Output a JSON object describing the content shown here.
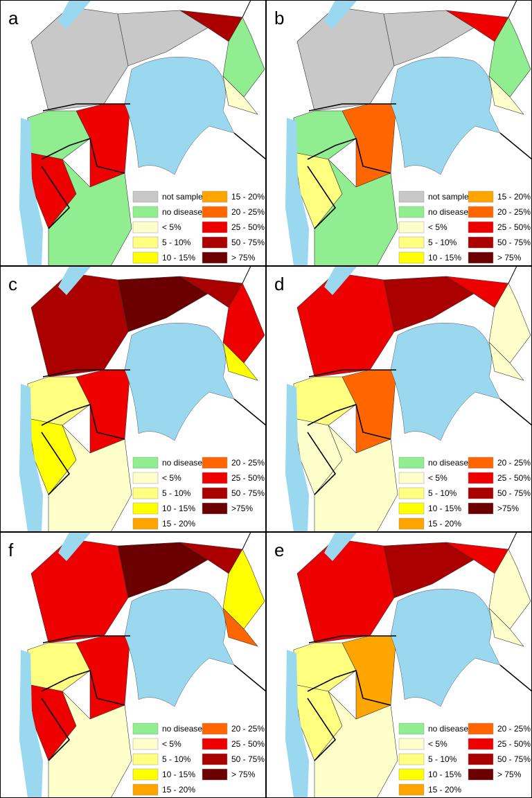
{
  "panels": [
    {
      "letter": "a",
      "legend": [
        {
          "label": "not sampled",
          "color": "#c8c8c8"
        },
        {
          "label": "no disease",
          "color": "#90ee90"
        },
        {
          "label": "< 5%",
          "color": "#ffffcc"
        },
        {
          "label": "5 - 10%",
          "color": "#ffff80"
        },
        {
          "label": "10 - 15%",
          "color": "#ffff00"
        },
        {
          "label": "15 - 20%",
          "color": "#ffa500"
        },
        {
          "label": "20 - 25%",
          "color": "#ff6600"
        },
        {
          "label": "25 - 50%",
          "color": "#ee0000"
        },
        {
          "label": "50 - 75%",
          "color": "#aa0000"
        },
        {
          "label": "> 75%",
          "color": "#6b0000"
        }
      ]
    },
    {
      "letter": "b",
      "legend": [
        {
          "label": "not sampled",
          "color": "#c8c8c8"
        },
        {
          "label": "no disease",
          "color": "#90ee90"
        },
        {
          "label": "< 5%",
          "color": "#ffffcc"
        },
        {
          "label": "5 - 10%",
          "color": "#ffff80"
        },
        {
          "label": "10 - 15%",
          "color": "#ffff00"
        },
        {
          "label": "15 - 20%",
          "color": "#ffa500"
        },
        {
          "label": "20 - 25%",
          "color": "#ff6600"
        },
        {
          "label": "25 - 50%",
          "color": "#ee0000"
        },
        {
          "label": "50 - 75%",
          "color": "#aa0000"
        },
        {
          "label": "> 75%",
          "color": "#6b0000"
        }
      ]
    },
    {
      "letter": "c",
      "legend": [
        {
          "label": "no disease",
          "color": "#90ee90"
        },
        {
          "label": "< 5%",
          "color": "#ffffcc"
        },
        {
          "label": "5 - 10%",
          "color": "#ffff80"
        },
        {
          "label": "10 - 15%",
          "color": "#ffff00"
        },
        {
          "label": "15 - 20%",
          "color": "#ffa500"
        },
        {
          "label": "20 - 25%",
          "color": "#ff6600"
        },
        {
          "label": "25 - 50%",
          "color": "#ee0000"
        },
        {
          "label": "50 - 75%",
          "color": "#aa0000"
        },
        {
          "label": ">75%",
          "color": "#6b0000"
        }
      ]
    },
    {
      "letter": "d",
      "legend": [
        {
          "label": "no disease",
          "color": "#90ee90"
        },
        {
          "label": "< 5%",
          "color": "#ffffcc"
        },
        {
          "label": "5 - 10%",
          "color": "#ffff80"
        },
        {
          "label": "10 - 15%",
          "color": "#ffff00"
        },
        {
          "label": "15 - 20%",
          "color": "#ffa500"
        },
        {
          "label": "20 - 25%",
          "color": "#ff6600"
        },
        {
          "label": "25 - 50%",
          "color": "#ee0000"
        },
        {
          "label": "50 - 75%",
          "color": "#aa0000"
        },
        {
          "label": ">75%",
          "color": "#6b0000"
        }
      ]
    },
    {
      "letter": "f",
      "legend": [
        {
          "label": "no disease",
          "color": "#90ee90"
        },
        {
          "label": "< 5%",
          "color": "#ffffcc"
        },
        {
          "label": "5 - 10%",
          "color": "#ffff80"
        },
        {
          "label": "10 - 15%",
          "color": "#ffff00"
        },
        {
          "label": "15 - 20%",
          "color": "#ffa500"
        },
        {
          "label": "20 - 25%",
          "color": "#ff6600"
        },
        {
          "label": "25 - 50%",
          "color": "#ee0000"
        },
        {
          "label": "50 - 75%",
          "color": "#aa0000"
        },
        {
          "label": "> 75%",
          "color": "#6b0000"
        }
      ]
    },
    {
      "letter": "e",
      "legend": [
        {
          "label": "no disease",
          "color": "#90ee90"
        },
        {
          "label": "< 5%",
          "color": "#ffffcc"
        },
        {
          "label": "5 - 10%",
          "color": "#ffff80"
        },
        {
          "label": "10 - 15%",
          "color": "#ffff00"
        },
        {
          "label": "15 - 20%",
          "color": "#ffa500"
        },
        {
          "label": "20 - 25%",
          "color": "#ff6600"
        },
        {
          "label": "25 - 50%",
          "color": "#ee0000"
        },
        {
          "label": "50 - 75%",
          "color": "#aa0000"
        },
        {
          "label": "> 75%",
          "color": "#6b0000"
        }
      ]
    }
  ]
}
